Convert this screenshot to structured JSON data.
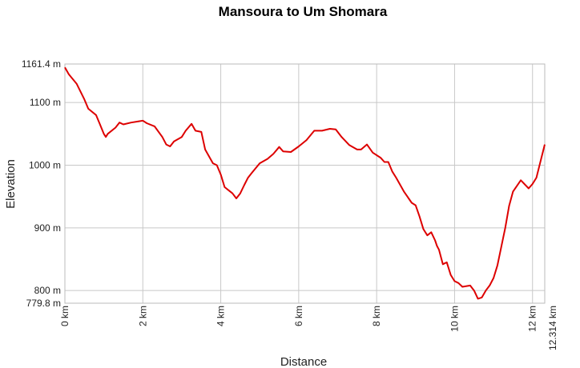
{
  "chart_data": {
    "type": "line",
    "title": "Mansoura to Um Shomara",
    "xlabel": "Distance",
    "ylabel": "Elevation",
    "xlim": [
      0,
      12.314
    ],
    "ylim": [
      779.8,
      1161.4
    ],
    "x_ticks": [
      {
        "value": 0,
        "label": "0 km"
      },
      {
        "value": 2,
        "label": "2 km"
      },
      {
        "value": 4,
        "label": "4 km"
      },
      {
        "value": 6,
        "label": "6 km"
      },
      {
        "value": 8,
        "label": "8 km"
      },
      {
        "value": 10,
        "label": "10 km"
      },
      {
        "value": 12,
        "label": "12 km"
      },
      {
        "value": 12.314,
        "label": "12.314 km"
      }
    ],
    "y_ticks": [
      {
        "value": 1161.4,
        "label": "1161.4 m"
      },
      {
        "value": 1100,
        "label": "1100 m"
      },
      {
        "value": 1000,
        "label": "1000 m"
      },
      {
        "value": 900,
        "label": "900 m"
      },
      {
        "value": 800,
        "label": "800 m"
      },
      {
        "value": 779.8,
        "label": "779.8 m"
      }
    ],
    "grid": true,
    "line_color": "#dd0000",
    "series": [
      {
        "x": [
          0,
          0.1,
          0.3,
          0.5,
          0.6,
          0.8,
          0.9,
          1.0,
          1.05,
          1.1,
          1.3,
          1.4,
          1.5,
          1.7,
          1.9,
          2.0,
          2.1,
          2.3,
          2.5,
          2.6,
          2.7,
          2.8,
          3.0,
          3.1,
          3.25,
          3.35,
          3.5,
          3.6,
          3.8,
          3.9,
          4.0,
          4.1,
          4.2,
          4.3,
          4.4,
          4.5,
          4.6,
          4.7,
          4.8,
          5.0,
          5.2,
          5.35,
          5.5,
          5.6,
          5.8,
          6.0,
          6.2,
          6.4,
          6.6,
          6.8,
          6.95,
          7.1,
          7.3,
          7.5,
          7.6,
          7.75,
          7.9,
          8.1,
          8.2,
          8.3,
          8.4,
          8.5,
          8.7,
          8.9,
          9.0,
          9.1,
          9.2,
          9.3,
          9.4,
          9.5,
          9.55,
          9.6,
          9.7,
          9.8,
          9.9,
          10.0,
          10.1,
          10.2,
          10.4,
          10.5,
          10.6,
          10.7,
          10.8,
          10.9,
          11.0,
          11.1,
          11.2,
          11.3,
          11.4,
          11.5,
          11.6,
          11.7,
          11.9,
          12.0,
          12.1,
          12.2,
          12.314
        ],
        "y": [
          1156,
          1145,
          1130,
          1105,
          1090,
          1080,
          1065,
          1050,
          1045,
          1050,
          1060,
          1068,
          1065,
          1068,
          1070,
          1071,
          1067,
          1062,
          1045,
          1033,
          1030,
          1038,
          1045,
          1055,
          1066,
          1055,
          1053,
          1025,
          1003,
          1000,
          985,
          965,
          960,
          955,
          947,
          955,
          968,
          980,
          988,
          1003,
          1010,
          1018,
          1029,
          1022,
          1021,
          1030,
          1040,
          1055,
          1055,
          1058,
          1057,
          1045,
          1032,
          1025,
          1025,
          1033,
          1020,
          1012,
          1005,
          1005,
          990,
          980,
          958,
          940,
          936,
          918,
          898,
          888,
          893,
          880,
          871,
          865,
          842,
          845,
          825,
          815,
          812,
          806,
          808,
          800,
          787,
          789,
          800,
          808,
          820,
          840,
          870,
          900,
          935,
          958,
          967,
          976,
          963,
          970,
          980,
          1005,
          1033
        ]
      }
    ]
  }
}
